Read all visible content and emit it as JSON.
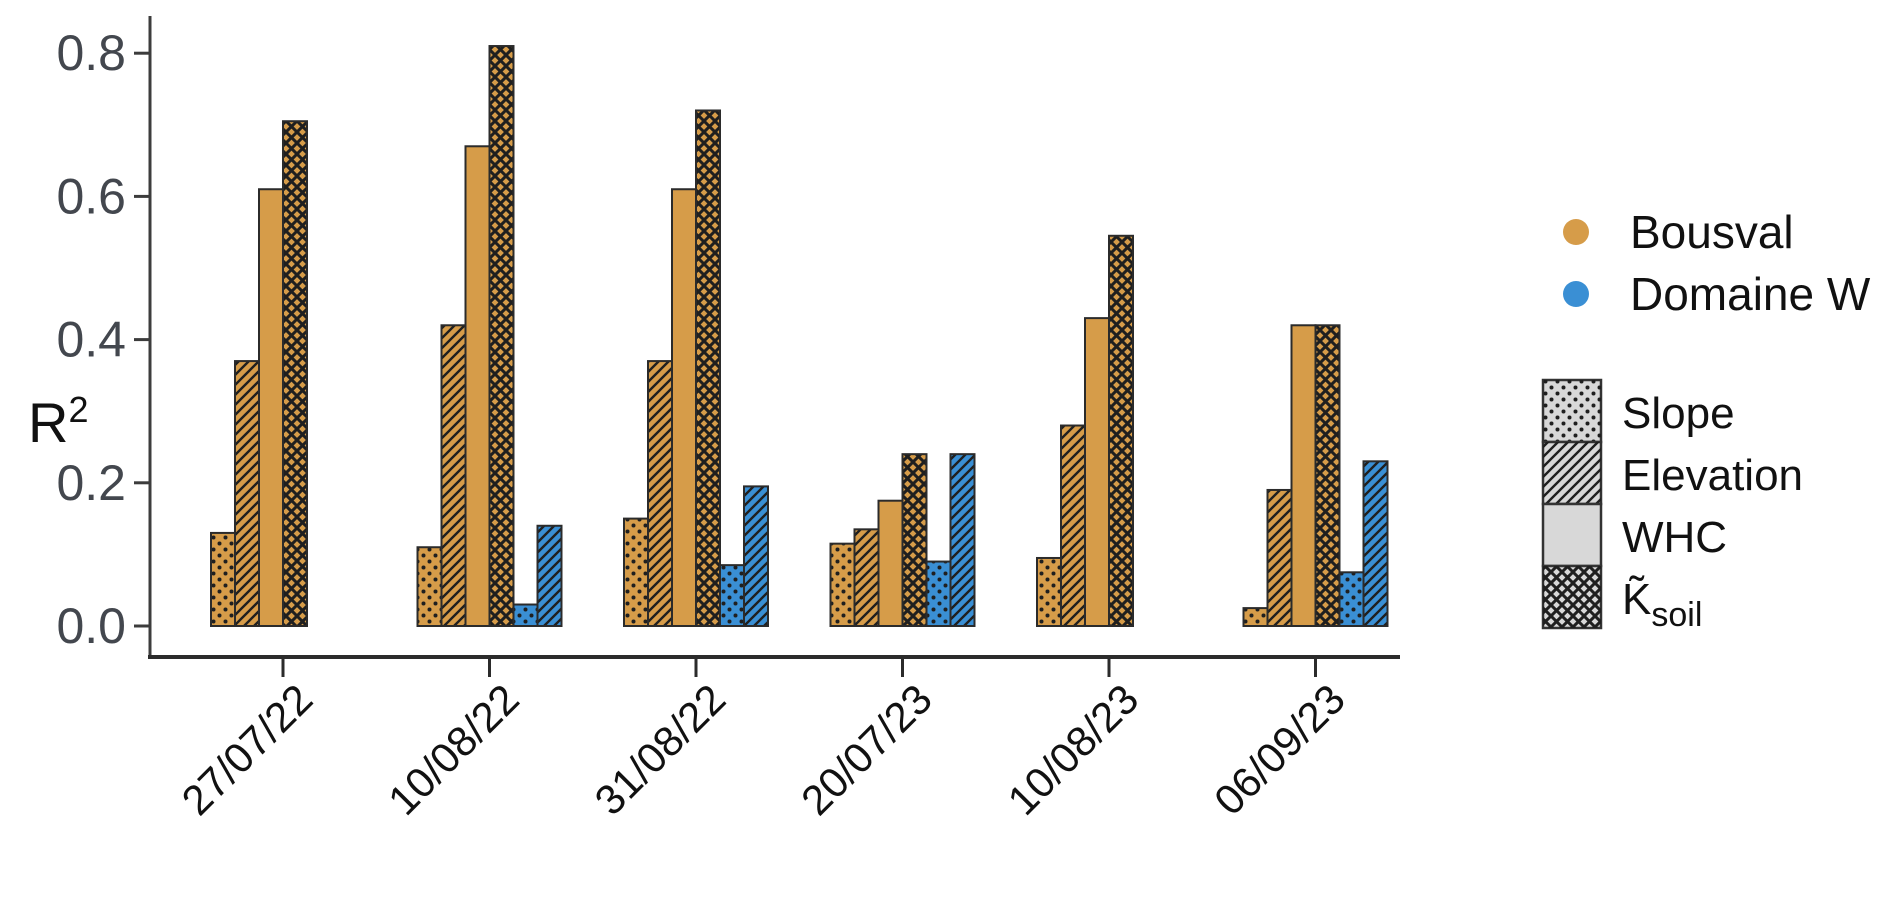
{
  "figure": {
    "kind": "grouped-bar-figure",
    "background": "#ffffff"
  },
  "chart_data": {
    "type": "bar",
    "title": "",
    "xlabel": "",
    "ylabel": "R²",
    "ylabel_parts": {
      "base": "R",
      "sup": "2"
    },
    "ylim": [
      0,
      0.85
    ],
    "yticks": [
      0.0,
      0.2,
      0.4,
      0.6,
      0.8
    ],
    "grid": false,
    "legend_position": "right",
    "categories": [
      "27/07/22",
      "10/08/22",
      "31/08/22",
      "20/07/23",
      "10/08/23",
      "06/09/23"
    ],
    "sites": [
      {
        "name": "Bousval",
        "color": "#D69C49"
      },
      {
        "name": "Domaine W",
        "color": "#3A8FD4"
      }
    ],
    "variables": [
      {
        "name": "Slope",
        "pattern": "dots"
      },
      {
        "name": "Elevation",
        "pattern": "diag"
      },
      {
        "name": "WHC",
        "pattern": "plain"
      },
      {
        "name": "K̃soil",
        "pattern": "cross"
      }
    ],
    "legend_ksoil": {
      "main": "K̃",
      "sub": "soil"
    },
    "series": [
      {
        "site": "Bousval",
        "variable": "Slope",
        "values": [
          0.13,
          0.11,
          0.15,
          0.115,
          0.095,
          0.025
        ]
      },
      {
        "site": "Bousval",
        "variable": "Elevation",
        "values": [
          0.37,
          0.42,
          0.37,
          0.135,
          0.28,
          0.19
        ]
      },
      {
        "site": "Bousval",
        "variable": "WHC",
        "values": [
          0.61,
          0.67,
          0.61,
          0.175,
          0.43,
          0.42
        ]
      },
      {
        "site": "Bousval",
        "variable": "K̃soil",
        "values": [
          0.705,
          0.81,
          0.72,
          0.24,
          0.545,
          0.42
        ]
      },
      {
        "site": "Domaine W",
        "variable": "Slope",
        "values": [
          null,
          0.03,
          0.085,
          0.09,
          null,
          0.075
        ]
      },
      {
        "site": "Domaine W",
        "variable": "Elevation",
        "values": [
          null,
          0.14,
          0.195,
          0.24,
          null,
          0.23
        ]
      }
    ],
    "colors": {
      "bar_edge": "#2B2B2B",
      "axis": "#2B2B2B",
      "tick_label": "#43474E",
      "text": "#111111",
      "legend_swatch_bg": "#D8D8D8",
      "pattern_mark": "#1F1F1F"
    }
  }
}
